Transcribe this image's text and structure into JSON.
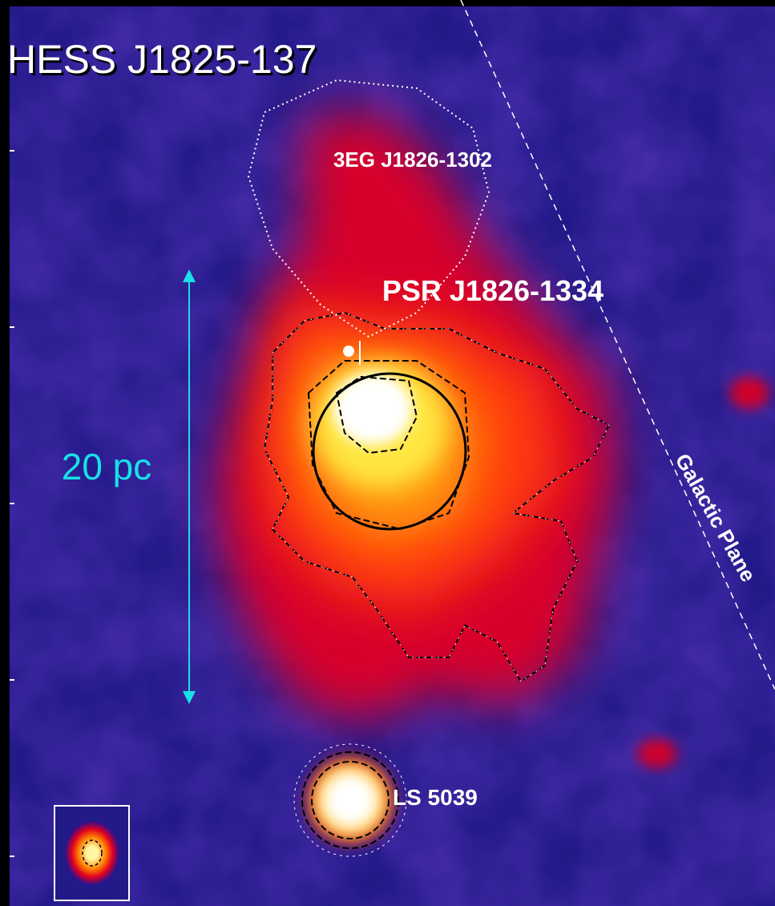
{
  "title": "HESS J1825-137",
  "labels": {
    "egret_source": "3EG J1826-1302",
    "pulsar": "PSR J1826-1334",
    "scale": "20 pc",
    "galactic_plane": "Galactic Plane",
    "binary": "LS 5039"
  }
}
